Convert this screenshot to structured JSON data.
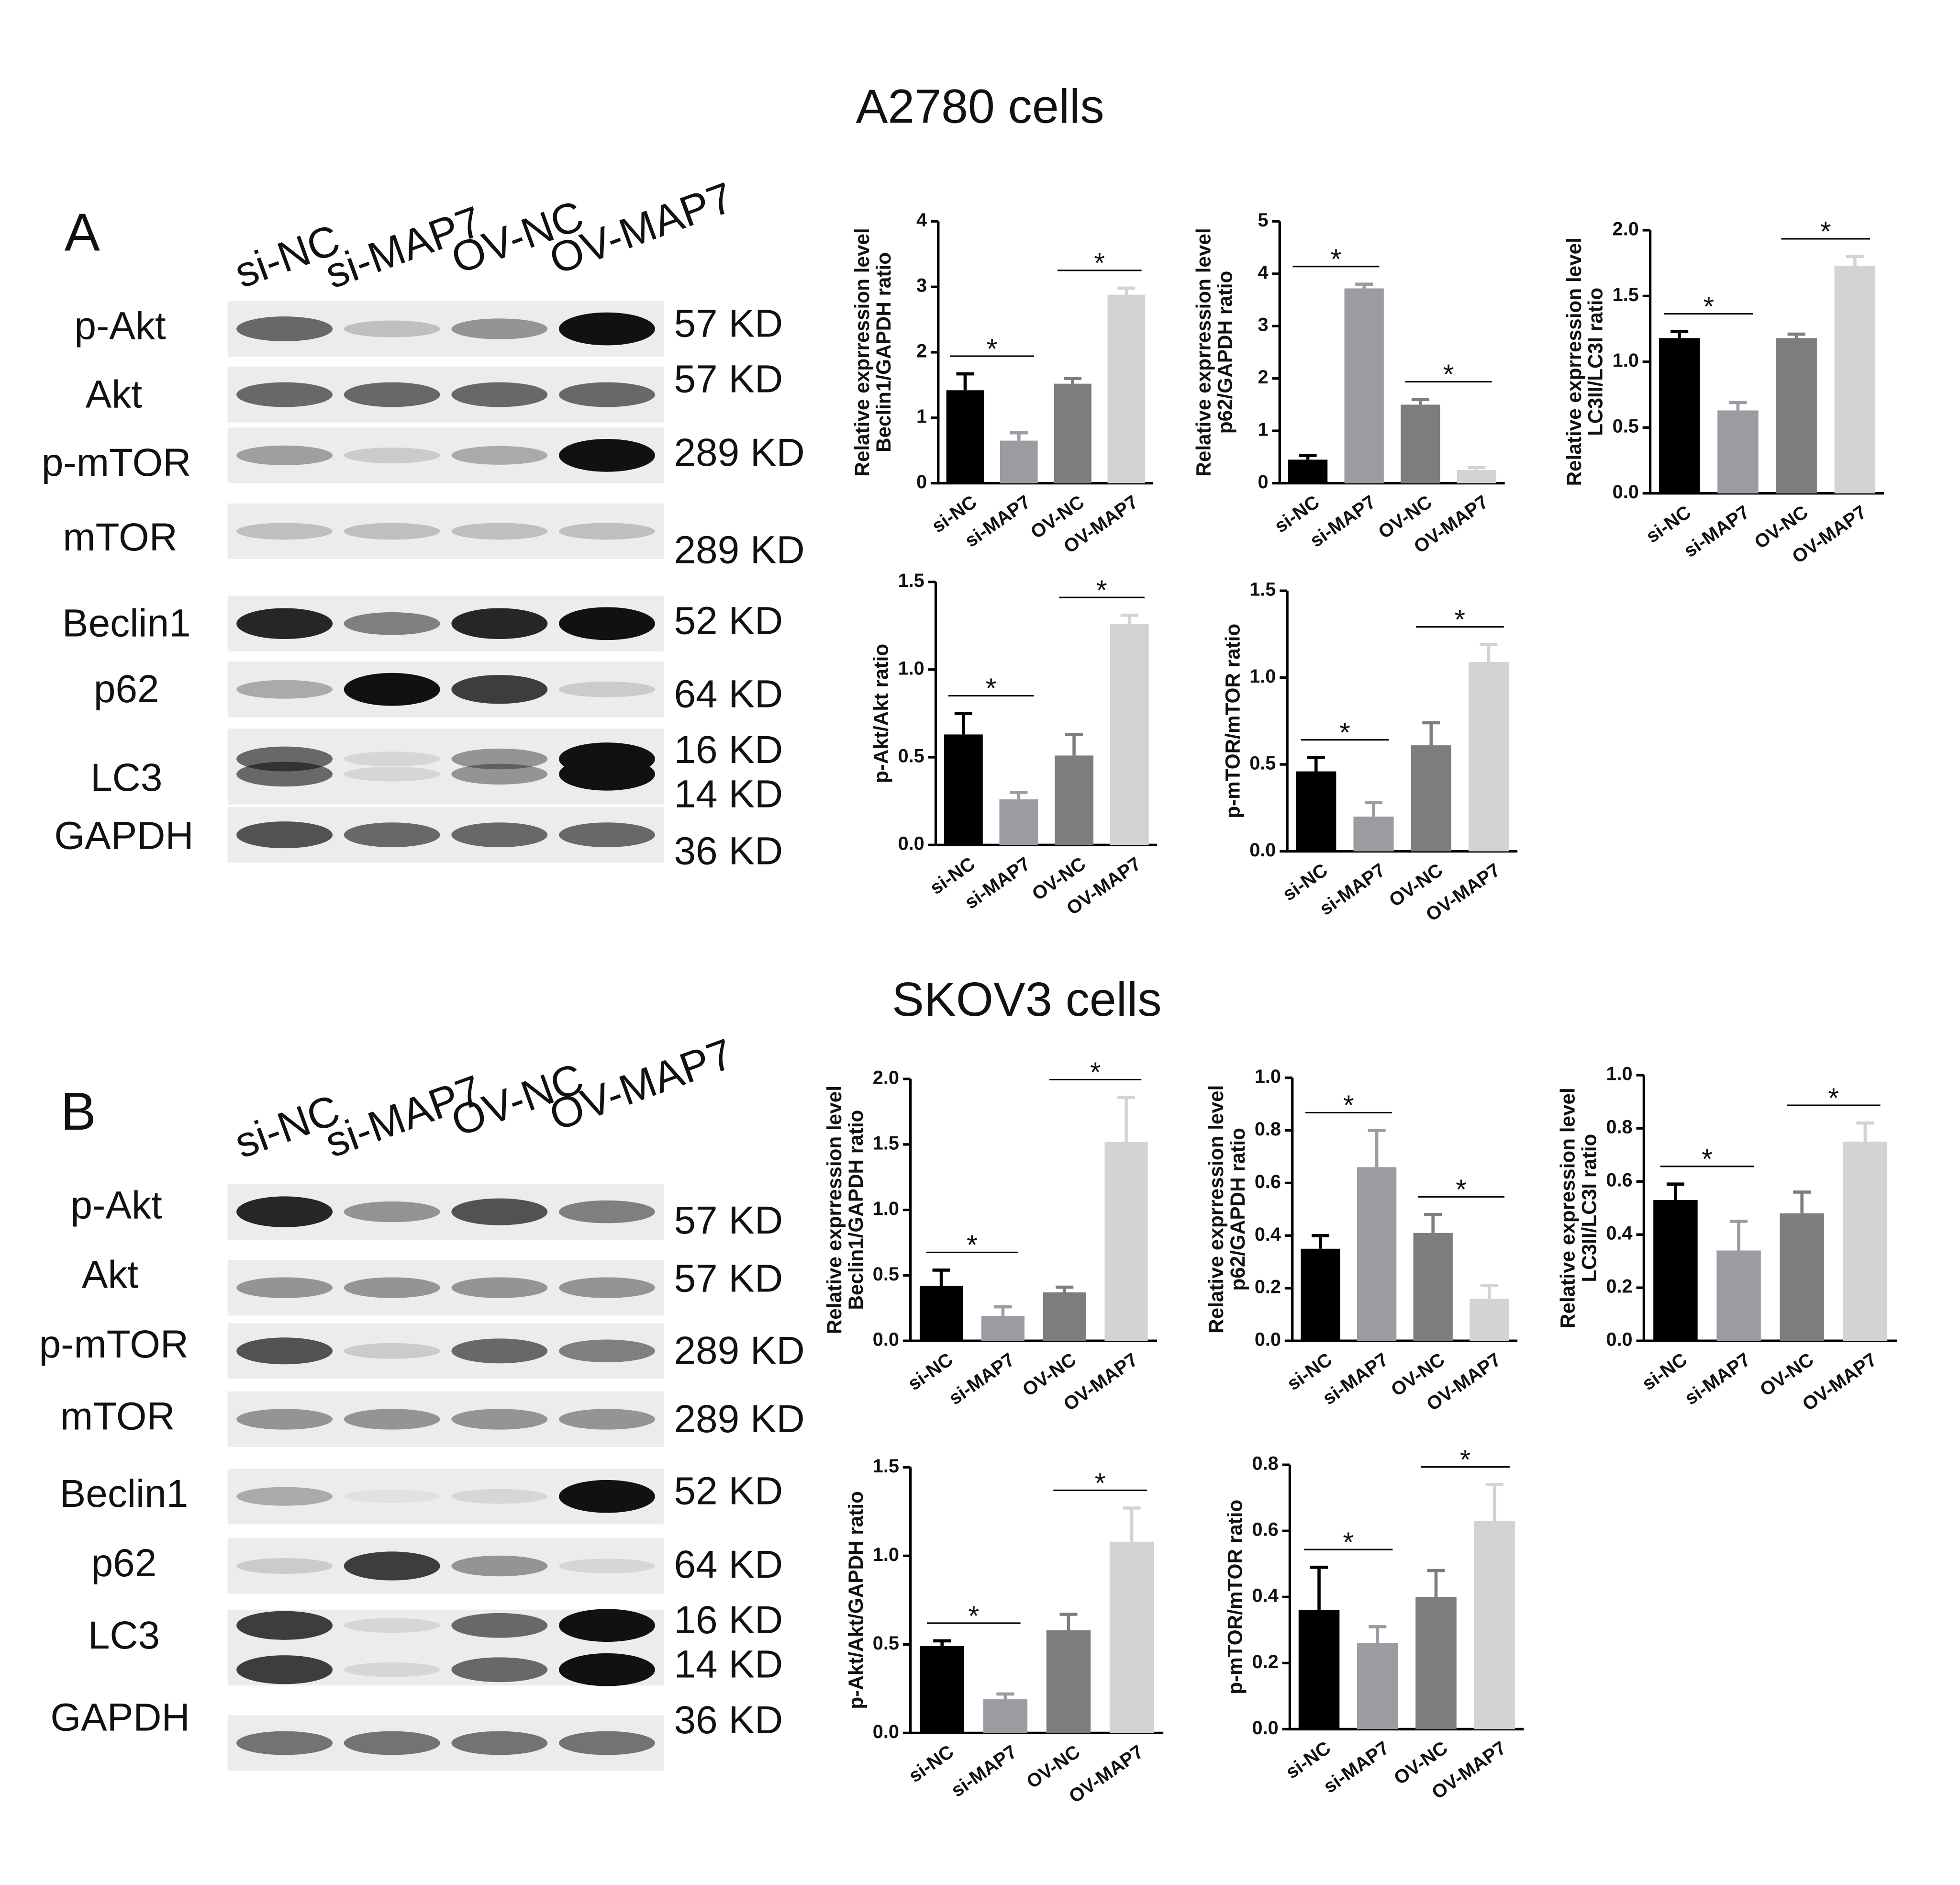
{
  "figure": {
    "panels": [
      {
        "letter": "A",
        "title": "A2780 cells",
        "lanes": [
          "si-NC",
          "si-MAP7",
          "OV-NC",
          "OV-MAP7"
        ],
        "proteins": [
          "p-Akt",
          "Akt",
          "p-mTOR",
          "mTOR",
          "Beclin1",
          "p62",
          "LC3",
          "GAPDH"
        ],
        "sizes": [
          "57 KD",
          "57 KD",
          "289 KD",
          "289 KD",
          "52 KD",
          "64 KD",
          "16 KD",
          "14 KD",
          "36 KD"
        ]
      },
      {
        "letter": "B",
        "title": "SKOV3 cells",
        "lanes": [
          "si-NC",
          "si-MAP7",
          "OV-NC",
          "OV-MAP7"
        ],
        "proteins": [
          "p-Akt",
          "Akt",
          "p-mTOR",
          "mTOR",
          "Beclin1",
          "p62",
          "LC3",
          "GAPDH"
        ],
        "sizes": [
          "57 KD",
          "57 KD",
          "289 KD",
          "289 KD",
          "52 KD",
          "64 KD",
          "16 KD",
          "14 KD",
          "36 KD"
        ]
      }
    ]
  },
  "chart_data": [
    {
      "type": "bar",
      "ylabel": [
        "Relative exprression level",
        "Beclin1/GAPDH ratio"
      ],
      "categories": [
        "si-NC",
        "si-MAP7",
        "OV-NC",
        "OV-MAP7"
      ],
      "values": [
        1.42,
        0.65,
        1.52,
        2.88
      ],
      "errors": [
        0.25,
        0.12,
        0.08,
        0.1
      ],
      "colors": [
        "#000000",
        "#9b9ba2",
        "#7d7d7d",
        "#d3d3d3"
      ],
      "ylim": [
        0,
        4
      ],
      "yticks": [
        0,
        1,
        2,
        3,
        4
      ],
      "annotations": [
        {
          "text": "*",
          "between": [
            "si-NC",
            "si-MAP7"
          ]
        },
        {
          "text": "*",
          "between": [
            "OV-NC",
            "OV-MAP7"
          ]
        }
      ]
    },
    {
      "type": "bar",
      "ylabel": [
        "Relative exprression level",
        "p62/GAPDH ratio"
      ],
      "categories": [
        "si-NC",
        "si-MAP7",
        "OV-NC",
        "OV-MAP7"
      ],
      "values": [
        0.45,
        3.72,
        1.5,
        0.25
      ],
      "errors": [
        0.08,
        0.08,
        0.1,
        0.05
      ],
      "colors": [
        "#000000",
        "#9b9ba2",
        "#7d7d7d",
        "#d3d3d3"
      ],
      "ylim": [
        0,
        5
      ],
      "yticks": [
        0,
        1,
        2,
        3,
        4,
        5
      ],
      "annotations": [
        {
          "text": "*",
          "between": [
            "si-NC",
            "si-MAP7"
          ]
        },
        {
          "text": "*",
          "between": [
            "OV-NC",
            "OV-MAP7"
          ]
        }
      ]
    },
    {
      "type": "bar",
      "ylabel": [
        "Relative exprression level",
        "LC3II/LC3I ratio"
      ],
      "categories": [
        "si-NC",
        "si-MAP7",
        "OV-NC",
        "OV-MAP7"
      ],
      "values": [
        1.18,
        0.63,
        1.18,
        1.73
      ],
      "errors": [
        0.05,
        0.06,
        0.03,
        0.07
      ],
      "colors": [
        "#000000",
        "#9b9ba2",
        "#7d7d7d",
        "#d3d3d3"
      ],
      "ylim": [
        0,
        2
      ],
      "yticks": [
        {
          "value": 0,
          "label": "0.0"
        },
        0.5,
        {
          "value": 1,
          "label": "1.0"
        },
        1.5,
        {
          "value": 2,
          "label": "2.0"
        }
      ],
      "annotations": [
        {
          "text": "*",
          "between": [
            "si-NC",
            "si-MAP7"
          ]
        },
        {
          "text": "*",
          "between": [
            "OV-NC",
            "OV-MAP7"
          ]
        }
      ]
    },
    {
      "type": "bar",
      "ylabel": [
        "p-Akt/Akt ratio"
      ],
      "categories": [
        "si-NC",
        "si-MAP7",
        "OV-NC",
        "OV-MAP7"
      ],
      "values": [
        0.63,
        0.26,
        0.51,
        1.26
      ],
      "errors": [
        0.12,
        0.04,
        0.12,
        0.05
      ],
      "colors": [
        "#000000",
        "#9b9ba2",
        "#7d7d7d",
        "#d3d3d3"
      ],
      "ylim": [
        0,
        1.5
      ],
      "yticks": [
        {
          "value": 0,
          "label": "0.0"
        },
        0.5,
        {
          "value": 1,
          "label": "1.0"
        },
        1.5
      ],
      "annotations": [
        {
          "text": "*",
          "between": [
            "si-NC",
            "si-MAP7"
          ]
        },
        {
          "text": "*",
          "between": [
            "OV-NC",
            "OV-MAP7"
          ]
        }
      ]
    },
    {
      "type": "bar",
      "ylabel": [
        "p-mTOR/mTOR ratio"
      ],
      "categories": [
        "si-NC",
        "si-MAP7",
        "OV-NC",
        "OV-MAP7"
      ],
      "values": [
        0.46,
        0.2,
        0.61,
        1.09
      ],
      "errors": [
        0.08,
        0.08,
        0.13,
        0.1
      ],
      "colors": [
        "#000000",
        "#9b9ba2",
        "#7d7d7d",
        "#d3d3d3"
      ],
      "ylim": [
        0,
        1.5
      ],
      "yticks": [
        {
          "value": 0,
          "label": "0.0"
        },
        0.5,
        {
          "value": 1,
          "label": "1.0"
        },
        1.5
      ],
      "annotations": [
        {
          "text": "*",
          "between": [
            "si-NC",
            "si-MAP7"
          ]
        },
        {
          "text": "*",
          "between": [
            "OV-NC",
            "OV-MAP7"
          ]
        }
      ]
    },
    {
      "type": "bar",
      "ylabel": [
        "Relative exprression level",
        "Beclin1/GAPDH ratio"
      ],
      "categories": [
        "si-NC",
        "si-MAP7",
        "OV-NC",
        "OV-MAP7"
      ],
      "values": [
        0.42,
        0.19,
        0.37,
        1.52
      ],
      "errors": [
        0.12,
        0.07,
        0.04,
        0.34
      ],
      "colors": [
        "#000000",
        "#9b9ba2",
        "#7d7d7d",
        "#d3d3d3"
      ],
      "ylim": [
        0,
        2
      ],
      "yticks": [
        {
          "value": 0,
          "label": "0.0"
        },
        0.5,
        {
          "value": 1,
          "label": "1.0"
        },
        1.5,
        {
          "value": 2,
          "label": "2.0"
        }
      ],
      "annotations": [
        {
          "text": "*",
          "between": [
            "si-NC",
            "si-MAP7"
          ]
        },
        {
          "text": "*",
          "between": [
            "OV-NC",
            "OV-MAP7"
          ]
        }
      ]
    },
    {
      "type": "bar",
      "ylabel": [
        "Relative exprression level",
        "p62/GAPDH ratio"
      ],
      "categories": [
        "si-NC",
        "si-MAP7",
        "OV-NC",
        "OV-MAP7"
      ],
      "values": [
        0.35,
        0.66,
        0.41,
        0.16
      ],
      "errors": [
        0.05,
        0.14,
        0.07,
        0.05
      ],
      "colors": [
        "#000000",
        "#9b9ba2",
        "#7d7d7d",
        "#d3d3d3"
      ],
      "ylim": [
        0,
        1
      ],
      "yticks": [
        {
          "value": 0,
          "label": "0.0"
        },
        0.2,
        0.4,
        0.6,
        0.8,
        {
          "value": 1,
          "label": "1.0"
        }
      ],
      "annotations": [
        {
          "text": "*",
          "between": [
            "si-NC",
            "si-MAP7"
          ]
        },
        {
          "text": "*",
          "between": [
            "OV-NC",
            "OV-MAP7"
          ]
        }
      ]
    },
    {
      "type": "bar",
      "ylabel": [
        "Relative expression level",
        "LC3II/LC3I ratio"
      ],
      "categories": [
        "si-NC",
        "si-MAP7",
        "OV-NC",
        "OV-MAP7"
      ],
      "values": [
        0.53,
        0.34,
        0.48,
        0.75
      ],
      "errors": [
        0.06,
        0.11,
        0.08,
        0.07
      ],
      "colors": [
        "#000000",
        "#9b9ba2",
        "#7d7d7d",
        "#d3d3d3"
      ],
      "ylim": [
        0,
        1
      ],
      "yticks": [
        {
          "value": 0,
          "label": "0.0"
        },
        0.2,
        0.4,
        0.6,
        0.8,
        {
          "value": 1,
          "label": "1.0"
        }
      ],
      "annotations": [
        {
          "text": "*",
          "between": [
            "si-NC",
            "si-MAP7"
          ]
        },
        {
          "text": "*",
          "between": [
            "OV-NC",
            "OV-MAP7"
          ]
        }
      ]
    },
    {
      "type": "bar",
      "ylabel": [
        "p-Akt/Akt/GAPDH ratio"
      ],
      "categories": [
        "si-NC",
        "si-MAP7",
        "OV-NC",
        "OV-MAP7"
      ],
      "values": [
        0.49,
        0.19,
        0.58,
        1.08
      ],
      "errors": [
        0.03,
        0.03,
        0.09,
        0.19
      ],
      "colors": [
        "#000000",
        "#9b9ba2",
        "#7d7d7d",
        "#d3d3d3"
      ],
      "ylim": [
        0,
        1.5
      ],
      "yticks": [
        {
          "value": 0,
          "label": "0.0"
        },
        0.5,
        {
          "value": 1,
          "label": "1.0"
        },
        1.5
      ],
      "annotations": [
        {
          "text": "*",
          "between": [
            "si-NC",
            "si-MAP7"
          ]
        },
        {
          "text": "*",
          "between": [
            "OV-NC",
            "OV-MAP7"
          ]
        }
      ]
    },
    {
      "type": "bar",
      "ylabel": [
        "p-mTOR/mTOR ratio"
      ],
      "categories": [
        "si-NC",
        "si-MAP7",
        "OV-NC",
        "OV-MAP7"
      ],
      "values": [
        0.36,
        0.26,
        0.4,
        0.63
      ],
      "errors": [
        0.13,
        0.05,
        0.08,
        0.11
      ],
      "colors": [
        "#000000",
        "#9b9ba2",
        "#7d7d7d",
        "#d3d3d3"
      ],
      "ylim": [
        0,
        0.8
      ],
      "yticks": [
        {
          "value": 0,
          "label": "0.0"
        },
        0.2,
        0.4,
        0.6,
        0.8
      ],
      "annotations": [
        {
          "text": "*",
          "between": [
            "si-NC",
            "si-MAP7"
          ]
        },
        {
          "text": "*",
          "between": [
            "OV-NC",
            "OV-MAP7"
          ]
        }
      ]
    }
  ]
}
